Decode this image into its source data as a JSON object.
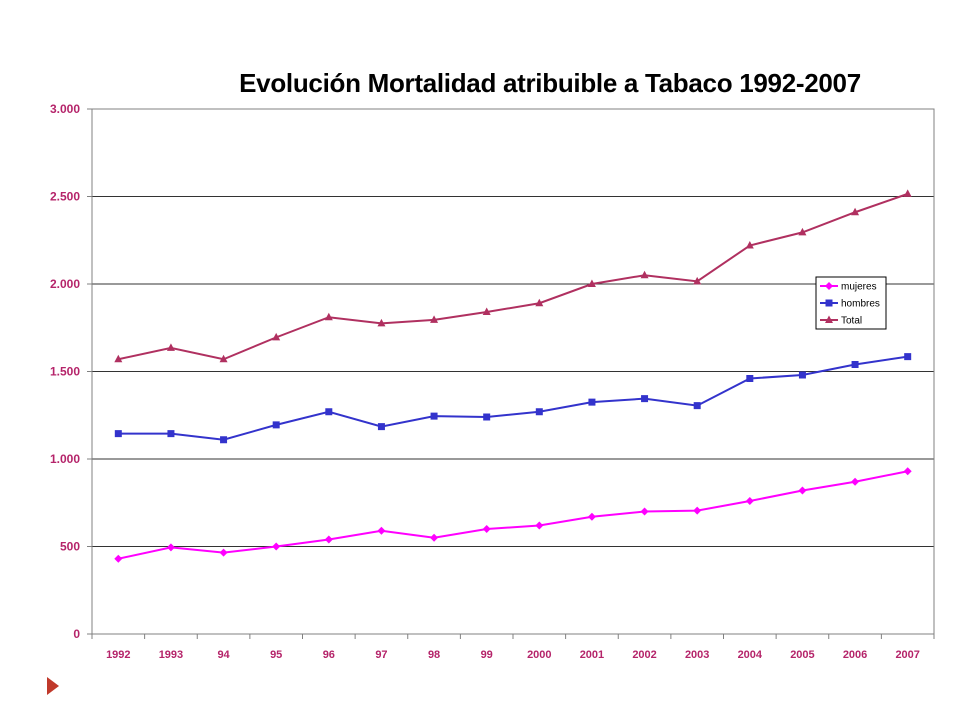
{
  "chart_data": {
    "type": "line",
    "title": "Evolución Mortalidad atribuible a Tabaco 1992-2007",
    "categories": [
      "1992",
      "1993",
      "94",
      "95",
      "96",
      "97",
      "98",
      "99",
      "2000",
      "2001",
      "2002",
      "2003",
      "2004",
      "2005",
      "2006",
      "2007"
    ],
    "ylim": [
      0,
      3000
    ],
    "yticks": [
      0,
      500,
      1000,
      1500,
      2000,
      2500,
      3000
    ],
    "ytick_labels": [
      "0",
      "500",
      "1.000",
      "1.500",
      "2.000",
      "2.500",
      "3.000"
    ],
    "grid": true,
    "legend_position": "right",
    "series": [
      {
        "name": "mujeres",
        "color": "#ff00ff",
        "marker": "diamond",
        "values": [
          430,
          495,
          465,
          500,
          540,
          590,
          550,
          600,
          620,
          670,
          700,
          705,
          760,
          820,
          870,
          930
        ]
      },
      {
        "name": "hombres",
        "color": "#3333cc",
        "marker": "square",
        "values": [
          1145,
          1145,
          1110,
          1195,
          1270,
          1185,
          1245,
          1240,
          1270,
          1325,
          1345,
          1305,
          1460,
          1480,
          1540,
          1585
        ]
      },
      {
        "name": "Total",
        "color": "#b03060",
        "marker": "triangle",
        "values": [
          1570,
          1635,
          1570,
          1695,
          1810,
          1775,
          1795,
          1840,
          1890,
          2000,
          2050,
          2015,
          2220,
          2295,
          2410,
          2515
        ]
      }
    ]
  }
}
